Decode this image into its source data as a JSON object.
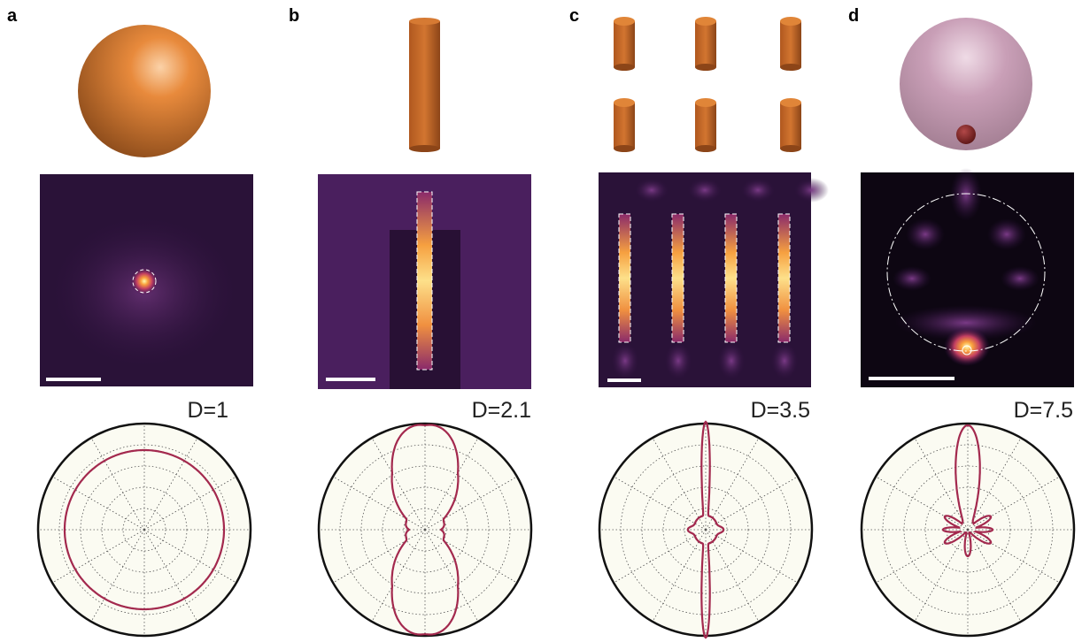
{
  "panels": [
    {
      "label": "a",
      "directivity": "D=1"
    },
    {
      "label": "b",
      "directivity": "D=2.1"
    },
    {
      "label": "c",
      "directivity": "D=3.5"
    },
    {
      "label": "d",
      "directivity": "D=7.5"
    }
  ]
}
